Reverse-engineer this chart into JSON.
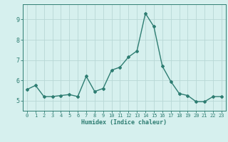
{
  "xlabel": "Humidex (Indice chaleur)",
  "x": [
    0,
    1,
    2,
    3,
    4,
    5,
    6,
    7,
    8,
    9,
    10,
    11,
    12,
    13,
    14,
    15,
    16,
    17,
    18,
    19,
    20,
    21,
    22,
    23
  ],
  "y": [
    5.55,
    5.75,
    5.2,
    5.2,
    5.25,
    5.3,
    5.2,
    6.2,
    5.45,
    5.6,
    6.5,
    6.65,
    7.15,
    7.45,
    9.3,
    8.65,
    6.7,
    5.95,
    5.35,
    5.25,
    4.95,
    4.95,
    5.2,
    5.2
  ],
  "line_color": "#2e7d72",
  "marker": "D",
  "marker_size": 2.0,
  "bg_color": "#d6f0ee",
  "grid_color": "#b8d8d5",
  "axis_color": "#2e7d72",
  "tick_color": "#2e7d72",
  "label_color": "#2e7d72",
  "ylim": [
    4.5,
    9.75
  ],
  "yticks": [
    5,
    6,
    7,
    8,
    9
  ],
  "xlim": [
    -0.5,
    23.5
  ],
  "linewidth": 1.0,
  "tick_fontsize": 5.0,
  "xlabel_fontsize": 6.0
}
